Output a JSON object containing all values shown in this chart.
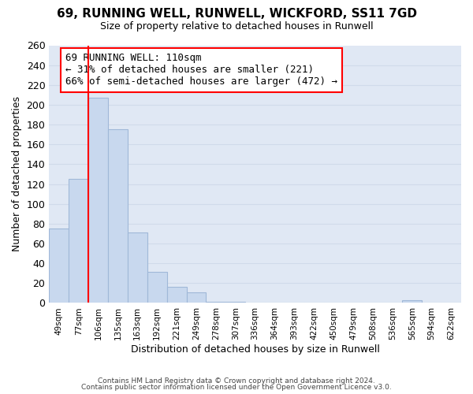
{
  "title": "69, RUNNING WELL, RUNWELL, WICKFORD, SS11 7GD",
  "subtitle": "Size of property relative to detached houses in Runwell",
  "xlabel": "Distribution of detached houses by size in Runwell",
  "ylabel": "Number of detached properties",
  "bar_color": "#c8d8ee",
  "bar_edge_color": "#a0b8d8",
  "categories": [
    "49sqm",
    "77sqm",
    "106sqm",
    "135sqm",
    "163sqm",
    "192sqm",
    "221sqm",
    "249sqm",
    "278sqm",
    "307sqm",
    "336sqm",
    "364sqm",
    "393sqm",
    "422sqm",
    "450sqm",
    "479sqm",
    "508sqm",
    "536sqm",
    "565sqm",
    "594sqm",
    "622sqm"
  ],
  "values": [
    75,
    125,
    207,
    175,
    71,
    31,
    16,
    11,
    1,
    1,
    0,
    0,
    0,
    0,
    0,
    0,
    0,
    0,
    3,
    0,
    0
  ],
  "ylim": [
    0,
    260
  ],
  "yticks": [
    0,
    20,
    40,
    60,
    80,
    100,
    120,
    140,
    160,
    180,
    200,
    220,
    240,
    260
  ],
  "annotation_title": "69 RUNNING WELL: 110sqm",
  "annotation_line1": "← 31% of detached houses are smaller (221)",
  "annotation_line2": "66% of semi-detached houses are larger (472) →",
  "footer1": "Contains HM Land Registry data © Crown copyright and database right 2024.",
  "footer2": "Contains public sector information licensed under the Open Government Licence v3.0.",
  "background_color": "#ffffff",
  "grid_color": "#d0daea",
  "axes_bg_color": "#e0e8f4"
}
